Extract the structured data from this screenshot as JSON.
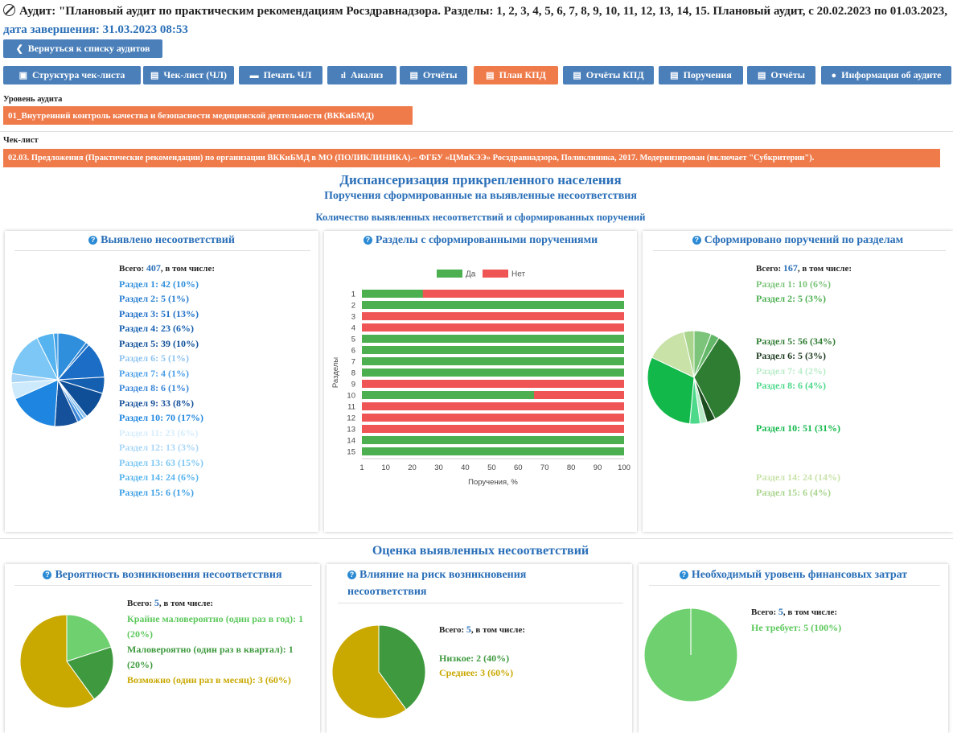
{
  "header": {
    "audit_text": "Аудит: \"Плановый аудит по практическим рекомендациям Росздравнадзора. Разделы: 1, 2, 3, 4, 5, 6, 7, 8, 9, 10, 11, 12, 13, 14, 15. Плановый аудит, с 20.02.2023 по 01.03.2023,",
    "due_text": "дата завершения: 31.03.2023 08:53",
    "back_button": "Вернуться к списку аудитов"
  },
  "toolbar": [
    {
      "label": "Структура чек-листа",
      "glyph": "▣",
      "active": false
    },
    {
      "label": "Чек-лист (ЧЛ)",
      "glyph": "▤",
      "active": false
    },
    {
      "label": "Печать ЧЛ",
      "glyph": "▬",
      "active": false
    },
    {
      "label": "Анализ",
      "glyph": "ıl",
      "active": false
    },
    {
      "label": "Отчёты",
      "glyph": "▤",
      "active": false
    },
    {
      "label": "План КПД",
      "glyph": "▤",
      "active": true
    },
    {
      "label": "Отчёты КПД",
      "glyph": "▤",
      "active": false
    },
    {
      "label": "Поручения",
      "glyph": "▤",
      "active": false
    },
    {
      "label": "Отчёты",
      "glyph": "▤",
      "active": false
    },
    {
      "label": "Информация об аудите",
      "glyph": "●",
      "active": false
    }
  ],
  "audit_level": {
    "label": "Уровень аудита",
    "value": "01_Внутренний контроль качества и безопасности медицинской деятельности (ВККиБМД)"
  },
  "checklist": {
    "label": "Чек-лист",
    "value": "02.03. Предложения (Практические рекомендации) по организации ВККиБМД в МО (ПОЛИКЛИНИКА).– ФГБУ «ЦМиКЭЭ» Росздравнадзора, Поликлиника, 2017. Модернизирован (включает \"Субкритерии\")."
  },
  "section_title": "Диспансеризация прикрепленного населения",
  "section_subtitle": "Поручения сформированные на выявленные несоответствия",
  "section_caption": "Количество выявленных несоответствий и сформированных поручений",
  "assessment_title": "Оценка выявленных несоответствий",
  "colors": {
    "accent": "#4a7fb9",
    "active": "#ef7b4b",
    "title": "#2a6fb8",
    "yes": "#4caf50",
    "no": "#f05555"
  },
  "chart_data": [
    {
      "type": "pie",
      "title": "Выявлено несоответствий",
      "total_prefix": "Всего:",
      "total": "407",
      "total_suffix": ", в том числе:",
      "categories": [
        "Раздел 1",
        "Раздел 2",
        "Раздел 3",
        "Раздел 4",
        "Раздел 5",
        "Раздел 6",
        "Раздел 7",
        "Раздел 8",
        "Раздел 9",
        "Раздел 10",
        "Раздел 11",
        "Раздел 12",
        "Раздел 13",
        "Раздел 14",
        "Раздел 15"
      ],
      "values": [
        42,
        5,
        51,
        23,
        39,
        5,
        4,
        6,
        33,
        70,
        23,
        13,
        63,
        24,
        6
      ],
      "labels": [
        "Раздел 1: 42 (10%)",
        "Раздел 2: 5 (1%)",
        "Раздел 3: 51 (13%)",
        "Раздел 4: 23 (6%)",
        "Раздел 5: 39 (10%)",
        "Раздел 6: 5 (1%)",
        "Раздел 7: 4 (1%)",
        "Раздел 8: 6 (1%)",
        "Раздел 9: 33 (8%)",
        "Раздел 10: 70 (17%)",
        "Раздел 11: 23 (6%)",
        "Раздел 12: 13 (3%)",
        "Раздел 13: 63 (15%)",
        "Раздел 14: 24 (6%)",
        "Раздел 15: 6 (1%)"
      ],
      "colors": [
        "#2f8fdc",
        "#2a7fd0",
        "#1c6dc6",
        "#155fb0",
        "#0e4f98",
        "#8ec3f0",
        "#4b9fe8",
        "#3a86d8",
        "#15519a",
        "#1e86e0",
        "#cdeafc",
        "#a9d6f7",
        "#7cc7f5",
        "#55b3ef",
        "#3d9fe5"
      ],
      "legend_colors": [
        "#2f8fdc",
        "#2a7fd0",
        "#1c6dc6",
        "#155fb0",
        "#0e4f98",
        "#8ec3f0",
        "#4b9fe8",
        "#3a86d8",
        "#15519a",
        "#1e86e0",
        "#d6edfc",
        "#a9d6f7",
        "#7cc7f5",
        "#55b3ef",
        "#3d9fe5"
      ]
    },
    {
      "type": "bar",
      "title": "Разделы с сформированными поручениями",
      "categories": [
        "1",
        "2",
        "3",
        "4",
        "5",
        "6",
        "7",
        "8",
        "9",
        "10",
        "11",
        "12",
        "13",
        "14",
        "15"
      ],
      "series": [
        {
          "name": "Да",
          "values": [
            24,
            100,
            0,
            0,
            100,
            100,
            100,
            100,
            0,
            66,
            0,
            0,
            0,
            100,
            100
          ]
        },
        {
          "name": "Нет",
          "values": [
            76,
            0,
            100,
            100,
            0,
            0,
            0,
            0,
            100,
            34,
            100,
            100,
            100,
            0,
            0
          ]
        }
      ],
      "xticks": [
        "1",
        "10",
        "20",
        "30",
        "40",
        "50",
        "60",
        "70",
        "80",
        "90",
        "100"
      ],
      "xlim": [
        1,
        100
      ],
      "xlabel": "Поручения, %",
      "ylabel": "Разделы",
      "legend": "top"
    },
    {
      "type": "pie",
      "title": "Сформировано поручений по разделам",
      "total_prefix": "Всего:",
      "total": "167",
      "total_suffix": ", в том числе:",
      "categories": [
        "Раздел 1",
        "Раздел 2",
        "Раздел 5",
        "Раздел 6",
        "Раздел 7",
        "Раздел 8",
        "Раздел 10",
        "Раздел 14",
        "Раздел 15"
      ],
      "values": [
        10,
        5,
        56,
        5,
        4,
        6,
        51,
        24,
        6
      ],
      "labels": [
        "Раздел 1: 10 (6%)",
        "Раздел 2: 5 (3%)",
        "Раздел 5: 56 (34%)",
        "Раздел 6: 5 (3%)",
        "Раздел 7: 4 (2%)",
        "Раздел 8: 6 (4%)",
        "Раздел 10: 51 (31%)",
        "Раздел 14: 24 (14%)",
        "Раздел 15: 6 (4%)"
      ],
      "colors": [
        "#7cc47a",
        "#62b866",
        "#2f7d32",
        "#1b4d1f",
        "#b8ecc8",
        "#4cd98a",
        "#12b84a",
        "#c8e2a8",
        "#a8d48c"
      ],
      "legend_colors": [
        "#7cc47a",
        "#4caf50",
        "#2f7d32",
        "#1e3b20",
        "#b8ecc8",
        "#4cd98a",
        "#12b84a",
        "#c8e2a8",
        "#a8d48c"
      ]
    },
    {
      "type": "pie",
      "title": "Вероятность возникновения несоответствия",
      "total_prefix": "Всего:",
      "total": "5",
      "total_suffix": ", в том числе:",
      "categories": [
        "Крайне маловероятно (один раз в год)",
        "Маловероятно (один раз в квартал)",
        "Возможно (один раз в месяц)"
      ],
      "values": [
        1,
        1,
        3
      ],
      "labels": [
        "Крайне маловероятно (один раз в год): 1 (20%)",
        "Маловероятно (один раз в квартал): 1 (20%)",
        "Возможно (один раз в месяц): 3 (60%)"
      ],
      "colors": [
        "#6ed06e",
        "#3f9a3f",
        "#c9a800"
      ],
      "legend_colors": [
        "#5cc85c",
        "#3f9a3f",
        "#c9a800"
      ]
    },
    {
      "type": "pie",
      "title": "Влияние на риск возникновения несоответствия",
      "total_prefix": "Всего:",
      "total": "5",
      "total_suffix": ", в том числе:",
      "categories": [
        "Низкое",
        "Среднее"
      ],
      "values": [
        2,
        3
      ],
      "labels": [
        "Низкое: 2 (40%)",
        "Среднее: 3 (60%)"
      ],
      "colors": [
        "#3f9a3f",
        "#c9a800"
      ],
      "legend_colors": [
        "#3f9a3f",
        "#c9a800"
      ]
    },
    {
      "type": "pie",
      "title": "Необходимый уровень финансовых затрат",
      "total_prefix": "Всего:",
      "total": "5",
      "total_suffix": ", в том числе:",
      "categories": [
        "Не требует"
      ],
      "values": [
        5
      ],
      "labels": [
        "Не требует: 5 (100%)"
      ],
      "colors": [
        "#6ed06e"
      ],
      "legend_colors": [
        "#5cc85c"
      ]
    }
  ]
}
